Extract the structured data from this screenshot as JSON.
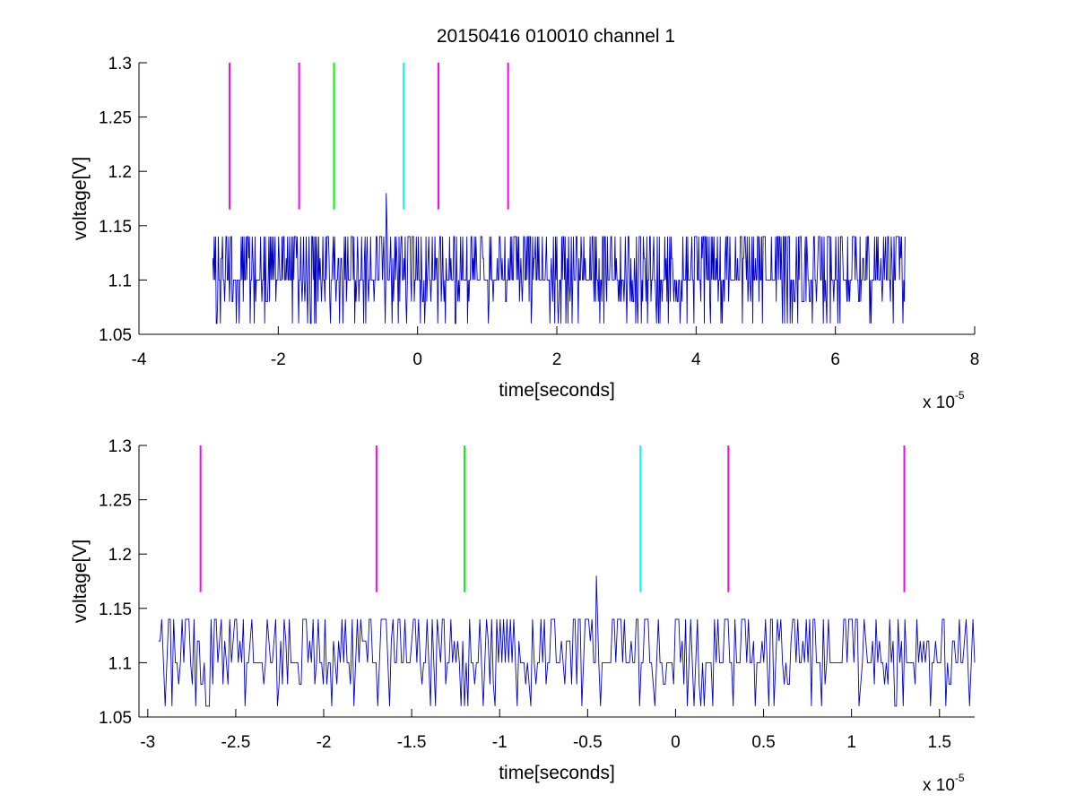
{
  "figure": {
    "title": "20150416 010010 channel 1"
  },
  "chart_data": [
    {
      "type": "line",
      "title": "20150416 010010 channel 1",
      "xlabel": "time[seconds]",
      "ylabel": "voltage[V]",
      "x_scale_label": "x 10",
      "x_scale_exponent": "-5",
      "xlim": [
        -4,
        8
      ],
      "ylim": [
        1.05,
        1.3
      ],
      "x_ticks": [
        -4,
        -2,
        0,
        2,
        4,
        6,
        8
      ],
      "x_tick_labels": [
        "-4",
        "-2",
        "0",
        "2",
        "4",
        "6",
        "8"
      ],
      "y_ticks": [
        1.05,
        1.1,
        1.15,
        1.2,
        1.25,
        1.3
      ],
      "y_tick_labels": [
        "1.05",
        "1.1",
        "1.15",
        "1.2",
        "1.25",
        "1.3"
      ],
      "grid": false,
      "signal": {
        "color": "#0000cc",
        "x_range": [
          -2.94,
          7.0
        ],
        "baseline": 1.1,
        "levels": [
          1.06,
          1.08,
          1.1,
          1.12,
          1.14
        ],
        "spike": {
          "x": -0.45,
          "y": 1.18
        }
      },
      "markers": [
        {
          "x": -2.7,
          "y_range": [
            1.165,
            1.3
          ],
          "color": "#ff00ff"
        },
        {
          "x": -1.7,
          "y_range": [
            1.165,
            1.3
          ],
          "color": "#ff00ff"
        },
        {
          "x": -1.2,
          "y_range": [
            1.165,
            1.3
          ],
          "color": "#00ff00"
        },
        {
          "x": -0.2,
          "y_range": [
            1.165,
            1.3
          ],
          "color": "#00ffff"
        },
        {
          "x": 0.3,
          "y_range": [
            1.165,
            1.3
          ],
          "color": "#ff00ff"
        },
        {
          "x": 1.3,
          "y_range": [
            1.165,
            1.3
          ],
          "color": "#ff00ff"
        }
      ]
    },
    {
      "type": "line",
      "title": "",
      "xlabel": "time[seconds]",
      "ylabel": "voltage[V]",
      "x_scale_label": "x 10",
      "x_scale_exponent": "-5",
      "xlim": [
        -3.05,
        1.7
      ],
      "ylim": [
        1.05,
        1.3
      ],
      "x_ticks": [
        -3,
        -2.5,
        -2,
        -1.5,
        -1,
        -0.5,
        0,
        0.5,
        1,
        1.5
      ],
      "x_tick_labels": [
        "-3",
        "-2.5",
        "-2",
        "-1.5",
        "-1",
        "-0.5",
        "0",
        "0.5",
        "1",
        "1.5"
      ],
      "y_ticks": [
        1.05,
        1.1,
        1.15,
        1.2,
        1.25,
        1.3
      ],
      "y_tick_labels": [
        "1.05",
        "1.1",
        "1.15",
        "1.2",
        "1.25",
        "1.3"
      ],
      "grid": false,
      "signal": {
        "color": "#0000cc",
        "x_range": [
          -2.94,
          1.7
        ],
        "baseline": 1.1,
        "levels": [
          1.06,
          1.08,
          1.1,
          1.12,
          1.14
        ],
        "spike": {
          "x": -0.45,
          "y": 1.18
        }
      },
      "markers": [
        {
          "x": -2.7,
          "y_range": [
            1.165,
            1.3
          ],
          "color": "#ff00ff"
        },
        {
          "x": -1.7,
          "y_range": [
            1.165,
            1.3
          ],
          "color": "#ff00ff"
        },
        {
          "x": -1.2,
          "y_range": [
            1.165,
            1.3
          ],
          "color": "#00ff00"
        },
        {
          "x": -0.2,
          "y_range": [
            1.165,
            1.3
          ],
          "color": "#00ffff"
        },
        {
          "x": 0.3,
          "y_range": [
            1.165,
            1.3
          ],
          "color": "#ff00ff"
        },
        {
          "x": 1.3,
          "y_range": [
            1.165,
            1.3
          ],
          "color": "#ff00ff"
        }
      ]
    }
  ]
}
